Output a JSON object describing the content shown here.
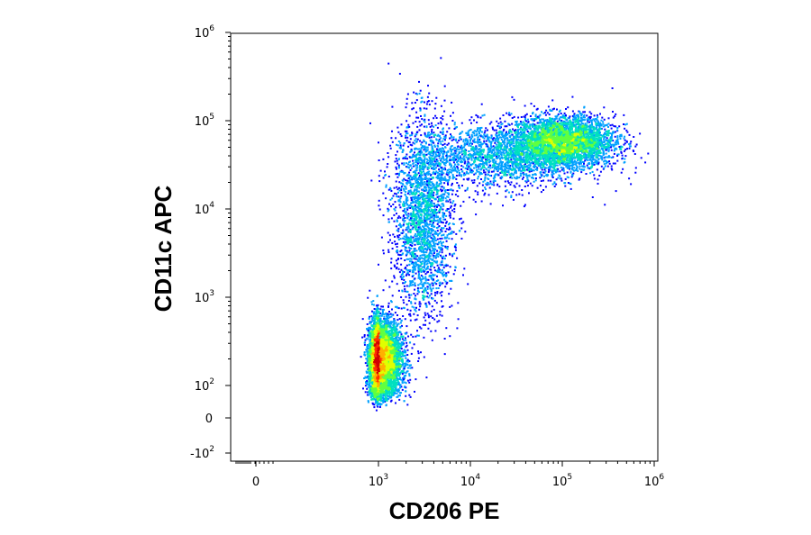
{
  "chart_data": {
    "type": "scatter",
    "xlabel": "CD206 PE",
    "ylabel": "CD11c APC",
    "x_scale": "biexponential",
    "y_scale": "biexponential",
    "x_ticks": [
      {
        "value": 0,
        "base": "0",
        "exp": ""
      },
      {
        "value": 1000,
        "base": "10",
        "exp": "3"
      },
      {
        "value": 10000,
        "base": "10",
        "exp": "4"
      },
      {
        "value": 100000,
        "base": "10",
        "exp": "5"
      },
      {
        "value": 1000000,
        "base": "10",
        "exp": "6"
      }
    ],
    "y_ticks": [
      {
        "value": -100,
        "base": "-10",
        "exp": "2"
      },
      {
        "value": 0,
        "base": "0",
        "exp": ""
      },
      {
        "value": 100,
        "base": "10",
        "exp": "2"
      },
      {
        "value": 1000,
        "base": "10",
        "exp": "3"
      },
      {
        "value": 10000,
        "base": "10",
        "exp": "4"
      },
      {
        "value": 100000,
        "base": "10",
        "exp": "5"
      },
      {
        "value": 1000000,
        "base": "10",
        "exp": "6"
      }
    ],
    "populations": [
      {
        "x_center": 1000,
        "y_center": 200,
        "x_spread_decades": 0.12,
        "y_spread_decades": 0.22,
        "weight": 0.42
      },
      {
        "x_center": 100000,
        "y_center": 60000,
        "x_spread_decades": 0.28,
        "y_spread_decades": 0.14,
        "weight": 0.27
      },
      {
        "x_center": 3000,
        "y_center": 8000,
        "x_spread_decades": 0.16,
        "y_spread_decades": 0.55,
        "weight": 0.17
      },
      {
        "x_center": 20000,
        "y_center": 40000,
        "x_spread_decades": 0.45,
        "y_spread_decades": 0.18,
        "weight": 0.14
      }
    ],
    "density_colors": [
      "#0000ff",
      "#00a0ff",
      "#00e0c0",
      "#60ff40",
      "#e0ff00",
      "#ffb000",
      "#ff3000",
      "#d00000"
    ]
  }
}
